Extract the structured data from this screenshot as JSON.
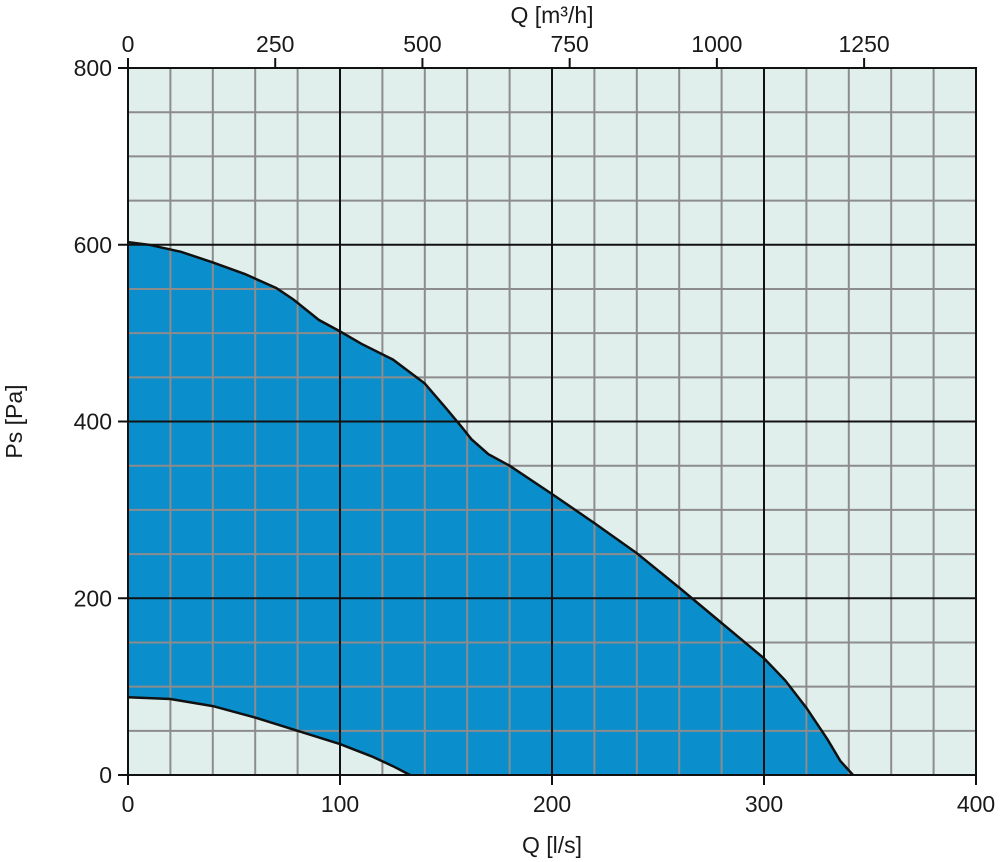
{
  "chart_data": {
    "type": "area",
    "x_axis_bottom": {
      "label": "Q [l/s]",
      "range": [
        0,
        400
      ],
      "ticks": [
        0,
        100,
        200,
        300,
        400
      ],
      "tick_labels": [
        "0",
        "100",
        "200",
        "300",
        "400"
      ],
      "minor_step": 20
    },
    "x_axis_top": {
      "label": "Q [m³/h]",
      "range": [
        0,
        1440
      ],
      "ticks": [
        0,
        250,
        500,
        750,
        1000,
        1250
      ],
      "tick_labels": [
        "0",
        "250",
        "500",
        "750",
        "1000",
        "1250"
      ]
    },
    "y_axis": {
      "label": "Ps [Pa]",
      "range": [
        0,
        800
      ],
      "ticks": [
        0,
        200,
        400,
        600,
        800
      ],
      "tick_labels": [
        "0",
        "200",
        "400",
        "600",
        "800"
      ],
      "minor_step": 50
    },
    "grid": true,
    "series": [
      {
        "role": "upper_boundary",
        "x": [
          0,
          10,
          25,
          40,
          55,
          70,
          78,
          90,
          100,
          110,
          125,
          140,
          150,
          157,
          162,
          170,
          180,
          200,
          220,
          240,
          260,
          280,
          300,
          310,
          320,
          330,
          336,
          342
        ],
        "y": [
          603,
          600,
          592,
          580,
          567,
          551,
          538,
          515,
          502,
          488,
          470,
          443,
          415,
          395,
          380,
          363,
          350,
          318,
          285,
          251,
          212,
          172,
          132,
          107,
          76,
          40,
          16,
          0
        ]
      },
      {
        "role": "lower_boundary",
        "x": [
          0,
          20,
          40,
          60,
          80,
          100,
          115,
          125,
          133
        ],
        "y": [
          88,
          86,
          78,
          65,
          50,
          35,
          21,
          10,
          0
        ]
      }
    ],
    "colors": {
      "fill": "#0a8fcc",
      "background": "#e1efec",
      "minor_grid": "#8c8c8c",
      "major_grid": "#111111",
      "curve": "#111111"
    }
  }
}
